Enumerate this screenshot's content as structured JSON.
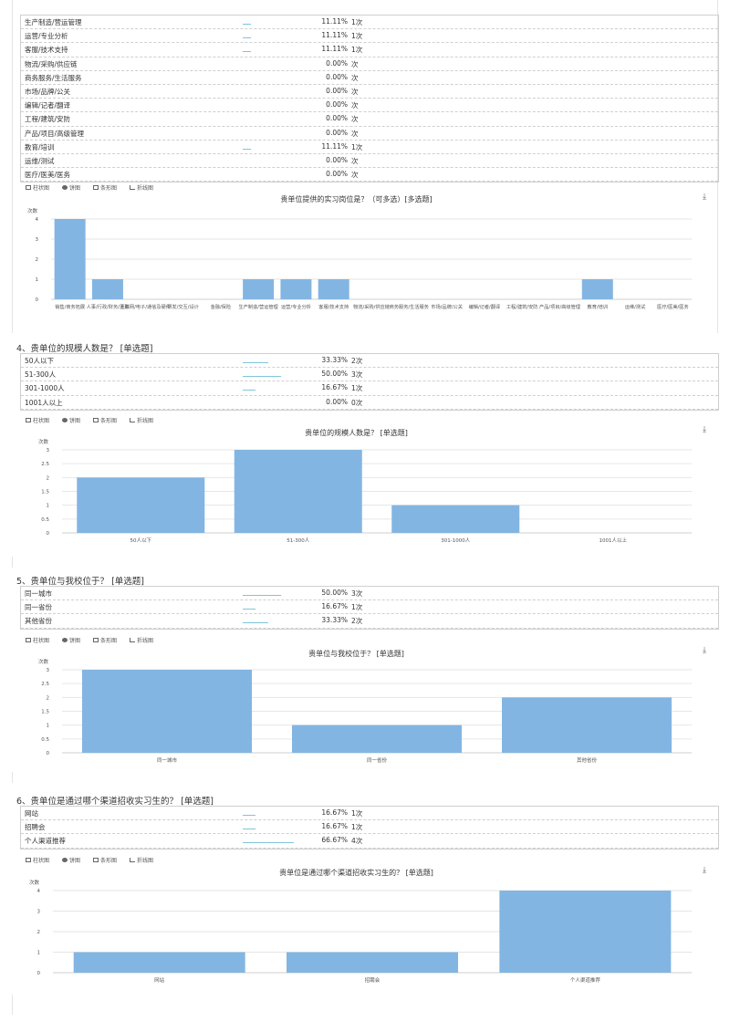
{
  "toolbar": {
    "bar_label": "柱状图",
    "pie_label": "饼图",
    "hbar_label": "条形图",
    "line_label": "折线图"
  },
  "download_icon": "download-icon",
  "q3": {
    "rows": [
      {
        "label": "生产制造/营运管理",
        "pct": "11.11%",
        "cnt": "1次",
        "ratio": 0.1111
      },
      {
        "label": "运营/专业分析",
        "pct": "11.11%",
        "cnt": "1次",
        "ratio": 0.1111
      },
      {
        "label": "客服/技术支持",
        "pct": "11.11%",
        "cnt": "1次",
        "ratio": 0.1111
      },
      {
        "label": "物流/采购/供应链",
        "pct": "0.00%",
        "cnt": "次",
        "ratio": 0
      },
      {
        "label": "商务服务/生活服务",
        "pct": "0.00%",
        "cnt": "次",
        "ratio": 0
      },
      {
        "label": "市场/品牌/公关",
        "pct": "0.00%",
        "cnt": "次",
        "ratio": 0
      },
      {
        "label": "编辑/记者/翻译",
        "pct": "0.00%",
        "cnt": "次",
        "ratio": 0
      },
      {
        "label": "工程/建筑/安防",
        "pct": "0.00%",
        "cnt": "次",
        "ratio": 0
      },
      {
        "label": "产品/项目/高级管理",
        "pct": "0.00%",
        "cnt": "次",
        "ratio": 0
      },
      {
        "label": "教育/培训",
        "pct": "11.11%",
        "cnt": "1次",
        "ratio": 0.1111
      },
      {
        "label": "运维/测试",
        "pct": "0.00%",
        "cnt": "次",
        "ratio": 0
      },
      {
        "label": "医疗/医美/医务",
        "pct": "0.00%",
        "cnt": "次",
        "ratio": 0
      }
    ]
  },
  "q4": {
    "title": "4、贵单位的规模人数是？ [单选题]",
    "rows": [
      {
        "label": "50人以下",
        "pct": "33.33%",
        "cnt": "2次",
        "ratio": 0.3333
      },
      {
        "label": "51-300人",
        "pct": "50.00%",
        "cnt": "3次",
        "ratio": 0.5
      },
      {
        "label": "301-1000人",
        "pct": "16.67%",
        "cnt": "1次",
        "ratio": 0.1667
      },
      {
        "label": "1001人以上",
        "pct": "0.00%",
        "cnt": "0次",
        "ratio": 0
      }
    ]
  },
  "q5": {
    "title": "5、贵单位与我校位于？ [单选题]",
    "rows": [
      {
        "label": "同一城市",
        "pct": "50.00%",
        "cnt": "3次",
        "ratio": 0.5
      },
      {
        "label": "同一省份",
        "pct": "16.67%",
        "cnt": "1次",
        "ratio": 0.1667
      },
      {
        "label": "其他省份",
        "pct": "33.33%",
        "cnt": "2次",
        "ratio": 0.3333
      }
    ]
  },
  "q6": {
    "title": "6、贵单位是通过哪个渠道招收实习生的？ [单选题]",
    "rows": [
      {
        "label": "网站",
        "pct": "16.67%",
        "cnt": "1次",
        "ratio": 0.1667
      },
      {
        "label": "招聘会",
        "pct": "16.67%",
        "cnt": "1次",
        "ratio": 0.1667
      },
      {
        "label": "个人渠道推荐",
        "pct": "66.67%",
        "cnt": "4次",
        "ratio": 0.6667
      }
    ]
  },
  "chart_data": [
    {
      "type": "bar",
      "title": "贵单位提供的实习岗位是？（可多选）[多选题]",
      "ylabel": "次数",
      "ylim": [
        0,
        4
      ],
      "yticks": [
        0,
        1,
        2,
        3,
        4
      ],
      "categories": [
        "销售/商务拓展",
        "人事/行政/财务/法务",
        "互联网/电子/通信及硬件",
        "研发/交互/设计",
        "金融/保险",
        "生产制造/营运管理",
        "运营/专业分析",
        "客服/技术支持",
        "物流/采购/供应链",
        "商务服务/生活服务",
        "市场/品牌/公关",
        "编辑/记者/翻译",
        "工程/建筑/安防",
        "产品/项目/高级管理",
        "教育/培训",
        "运维/测试",
        "医疗/医美/医务"
      ],
      "tick_labels": [
        "销售/商务拓展",
        "人事/行政/财务/法务",
        "互联网/电子/通信及硬件",
        "研发/交互/设计",
        "金融/保险",
        "生产制造/营运管理",
        "运营/专业分析",
        "客服/技术支持",
        "物流/采购/供应链",
        "商务服务/生活服务",
        "市场/品牌/公关",
        "编辑/记者/翻译",
        "工程/建筑/安防",
        "产品/项目/高级管理",
        "教育/培训",
        "运维/测试",
        "医疗/医美/医务"
      ],
      "values": [
        4,
        1,
        0,
        0,
        0,
        1,
        1,
        1,
        0,
        0,
        0,
        0,
        0,
        0,
        1,
        0,
        0
      ],
      "grid": true
    },
    {
      "type": "bar",
      "title": "贵单位的规模人数是？ [单选题]",
      "ylabel": "次数",
      "ylim": [
        0,
        3
      ],
      "yticks": [
        0,
        0.5,
        1,
        1.5,
        2,
        2.5,
        3
      ],
      "categories": [
        "50人以下",
        "51-300人",
        "301-1000人",
        "1001人以上"
      ],
      "values": [
        2,
        3,
        1,
        0
      ],
      "grid": true
    },
    {
      "type": "bar",
      "title": "贵单位与我校位于？ [单选题]",
      "ylabel": "次数",
      "ylim": [
        0,
        3
      ],
      "yticks": [
        0,
        0.5,
        1,
        1.5,
        2,
        2.5,
        3
      ],
      "categories": [
        "同一城市",
        "同一省份",
        "其他省份"
      ],
      "values": [
        3,
        1,
        2
      ],
      "grid": true
    },
    {
      "type": "bar",
      "title": "贵单位是通过哪个渠道招收实习生的？ [单选题]",
      "ylabel": "次数",
      "ylim": [
        0,
        4
      ],
      "yticks": [
        0,
        1,
        2,
        3,
        4
      ],
      "categories": [
        "网站",
        "招聘会",
        "个人渠道推荐"
      ],
      "values": [
        1,
        1,
        4
      ],
      "grid": true
    }
  ]
}
